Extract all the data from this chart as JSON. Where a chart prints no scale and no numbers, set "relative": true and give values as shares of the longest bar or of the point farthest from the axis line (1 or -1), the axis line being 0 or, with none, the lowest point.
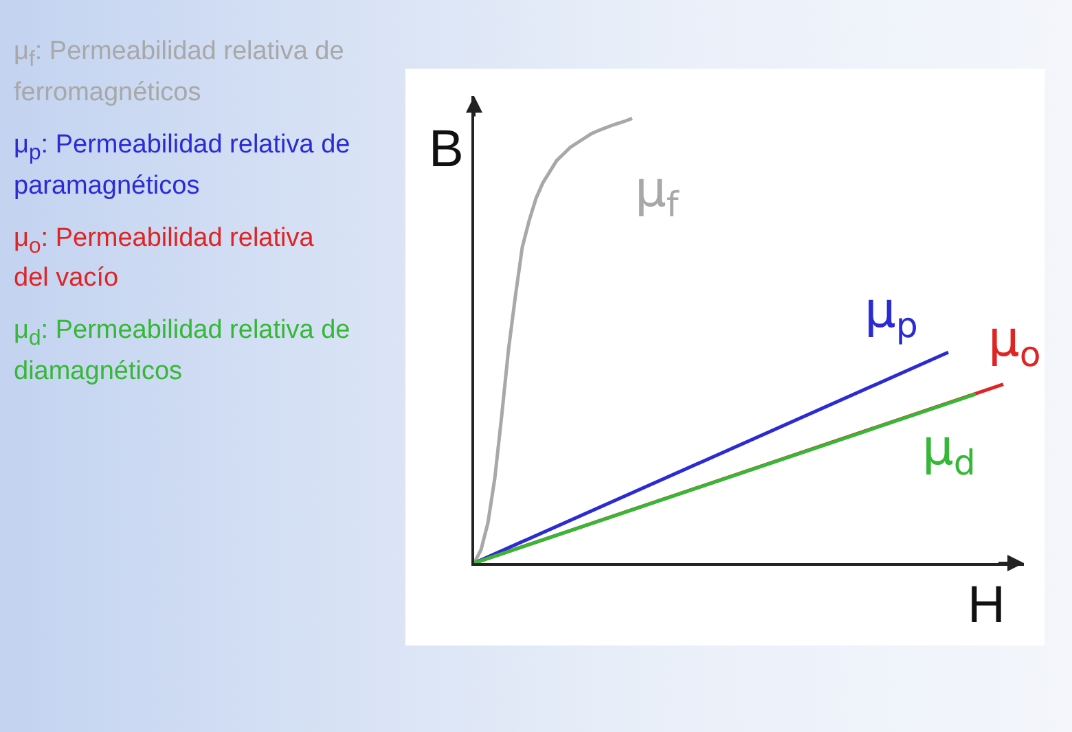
{
  "chart_data": {
    "type": "line",
    "relative": true,
    "legend": false,
    "grid": false,
    "marker": "none",
    "line_style": "solid",
    "xlabel": "H",
    "ylabel": "B",
    "annotations": [
      "μ$_{f}$: Permeabilidad relativa de ferromagnéticos",
      "μ$_{p}$: Permeabilidad relativa de paramagnéticos",
      "μ$_{o}$: Permeabilidad relativa del vacío",
      "μ$_{d}$: Permeabilidad relativa de diamagnéticos"
    ],
    "categories": [
      null,
      null,
      null,
      null,
      null,
      null,
      null,
      null,
      null,
      null,
      null,
      null,
      null,
      null,
      null,
      null,
      null,
      null,
      null,
      null,
      null,
      null,
      null,
      null,
      null,
      null,
      null,
      null,
      null,
      null,
      null,
      null,
      null,
      null,
      null,
      null,
      null,
      null,
      null,
      null,
      null,
      null,
      null,
      null,
      null,
      null,
      null,
      null,
      null,
      null,
      null,
      null,
      null,
      null,
      null,
      null,
      null,
      null,
      null,
      null,
      null,
      null,
      null,
      null,
      null,
      null,
      null,
      null,
      null,
      null,
      null,
      null,
      null,
      null,
      null,
      null,
      null,
      null,
      null,
      null,
      null
    ],
    "series": [
      {
        "name": "μ$_{f}$",
        "color": "#a8a8a8",
        "values": [
          0,
          0.03,
          0.09,
          0.19,
          0.33,
          0.48,
          0.6,
          0.71,
          0.77,
          0.82,
          0.855,
          0.88,
          0.905,
          0.92,
          0.935,
          0.945,
          0.955,
          0.965,
          0.972,
          0.978,
          0.984,
          0.989,
          0.994,
          1,
          null,
          null,
          null,
          null,
          null,
          null,
          null,
          null,
          null,
          null,
          null,
          null,
          null,
          null,
          null,
          null,
          null,
          null,
          null,
          null,
          null,
          null,
          null,
          null,
          null,
          null,
          null,
          null,
          null,
          null,
          null,
          null,
          null,
          null,
          null,
          null,
          null,
          null,
          null,
          null,
          null,
          null,
          null,
          null,
          null,
          null,
          null,
          null,
          null,
          null,
          null,
          null,
          null,
          null,
          null,
          null,
          null
        ]
      },
      {
        "name": "μ$_{p}$",
        "color": "#2b2bd6",
        "values": [
          0,
          null,
          null,
          null,
          null,
          null,
          null,
          null,
          null,
          null,
          null,
          null,
          null,
          null,
          null,
          null,
          null,
          null,
          null,
          null,
          null,
          null,
          null,
          null,
          null,
          null,
          null,
          null,
          null,
          null,
          null,
          null,
          null,
          null,
          null,
          null,
          null,
          null,
          null,
          null,
          null,
          null,
          null,
          null,
          null,
          null,
          null,
          null,
          null,
          null,
          null,
          null,
          null,
          null,
          null,
          null,
          null,
          null,
          null,
          null,
          null,
          null,
          null,
          null,
          null,
          null,
          null,
          null,
          null,
          0.474,
          null,
          null,
          null,
          null,
          null,
          null,
          null,
          null,
          null,
          null,
          null
        ]
      },
      {
        "name": "μ$_{o}$",
        "color": "#e02424",
        "values": [
          0,
          null,
          null,
          null,
          null,
          null,
          null,
          null,
          null,
          null,
          null,
          null,
          null,
          null,
          null,
          null,
          null,
          null,
          null,
          null,
          null,
          null,
          null,
          null,
          null,
          null,
          null,
          null,
          null,
          null,
          null,
          null,
          null,
          null,
          null,
          null,
          null,
          null,
          null,
          null,
          null,
          null,
          null,
          null,
          null,
          null,
          null,
          null,
          null,
          null,
          null,
          null,
          null,
          null,
          null,
          null,
          null,
          null,
          null,
          null,
          null,
          null,
          null,
          null,
          null,
          null,
          null,
          null,
          null,
          null,
          null,
          null,
          null,
          null,
          null,
          null,
          null,
          0.402,
          null,
          null,
          null
        ]
      },
      {
        "name": "μ$_{d}$",
        "color": "#35b835",
        "values": [
          0,
          null,
          null,
          null,
          null,
          null,
          null,
          null,
          null,
          null,
          null,
          null,
          null,
          null,
          null,
          null,
          null,
          null,
          null,
          null,
          null,
          null,
          null,
          null,
          null,
          null,
          null,
          null,
          null,
          null,
          null,
          null,
          null,
          null,
          null,
          null,
          null,
          null,
          null,
          null,
          null,
          null,
          null,
          null,
          null,
          null,
          null,
          null,
          null,
          null,
          null,
          null,
          null,
          null,
          null,
          null,
          null,
          null,
          null,
          null,
          null,
          null,
          null,
          null,
          null,
          null,
          null,
          null,
          null,
          null,
          null,
          null,
          null,
          0.38,
          null,
          null,
          null,
          null,
          null,
          null,
          null
        ]
      }
    ]
  }
}
